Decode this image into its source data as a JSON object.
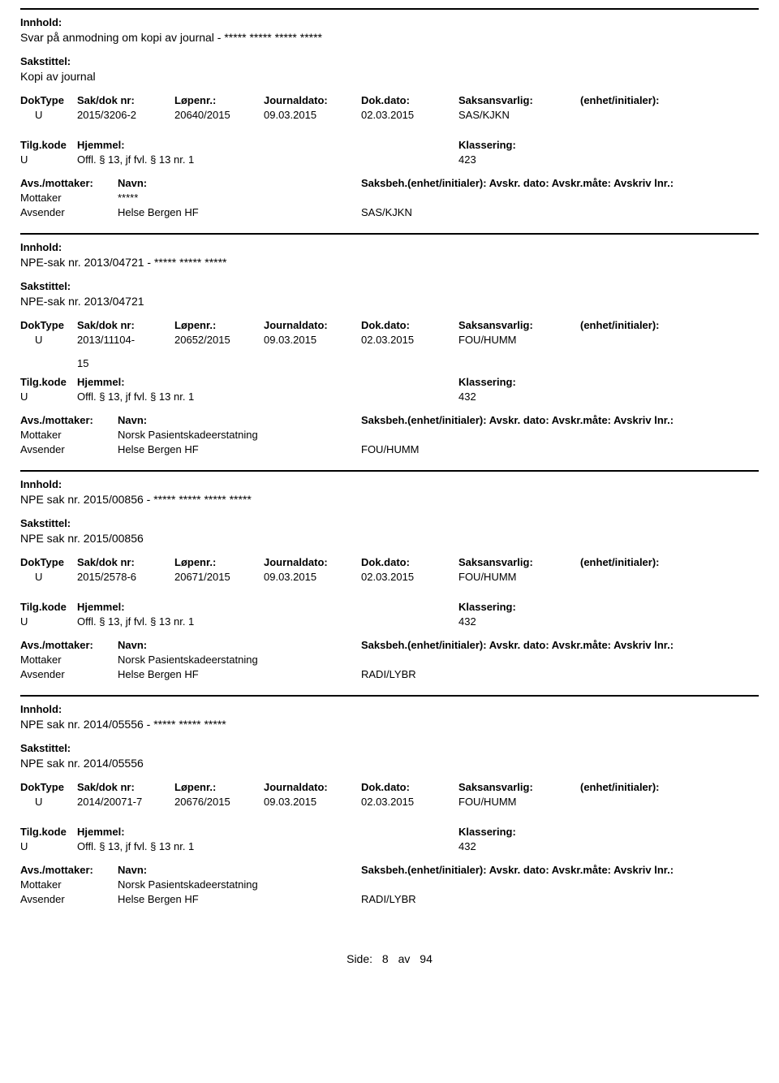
{
  "labels": {
    "innhold": "Innhold:",
    "sakstittel": "Sakstittel:",
    "doktype": "DokType",
    "sakdoknr": "Sak/dok nr:",
    "lopenr": "Løpenr.:",
    "journaldato": "Journaldato:",
    "dokdato": "Dok.dato:",
    "saksansvarlig": "Saksansvarlig:",
    "enhet": "(enhet/initialer):",
    "tilgkode": "Tilg.kode",
    "hjemmel": "Hjemmel:",
    "klassering": "Klassering:",
    "avsmottaker": "Avs./mottaker:",
    "navn": "Navn:",
    "saksbeh_line": "Saksbeh.(enhet/initialer): Avskr. dato:  Avskr.måte:  Avskriv lnr.:",
    "mottaker": "Mottaker",
    "avsender": "Avsender"
  },
  "entries": [
    {
      "innhold": "Svar på anmodning om kopi av journal - ***** ***** ***** *****",
      "sakstittel": "Kopi av journal",
      "doktype": "U",
      "sakdoknr": "2015/3206-2",
      "sakdoknr2": "",
      "lopenr": "20640/2015",
      "journaldato": "09.03.2015",
      "dokdato": "02.03.2015",
      "saksansvarlig": "SAS/KJKN",
      "tilgkode": "U",
      "hjemmel": "Offl. § 13, jf fvl. § 13 nr. 1",
      "klassering": "423",
      "mottaker_name": "*****",
      "avsender_name": "Helse Bergen HF",
      "saksbeh_unit": "SAS/KJKN"
    },
    {
      "innhold": "NPE-sak nr. 2013/04721 - ***** ***** *****",
      "sakstittel": "NPE-sak nr. 2013/04721",
      "doktype": "U",
      "sakdoknr": "2013/11104-",
      "sakdoknr2": "15",
      "lopenr": "20652/2015",
      "journaldato": "09.03.2015",
      "dokdato": "02.03.2015",
      "saksansvarlig": "FOU/HUMM",
      "tilgkode": "U",
      "hjemmel": "Offl. § 13, jf fvl. § 13 nr. 1",
      "klassering": "432",
      "mottaker_name": "Norsk Pasientskadeerstatning",
      "avsender_name": "Helse Bergen HF",
      "saksbeh_unit": "FOU/HUMM"
    },
    {
      "innhold": "NPE sak nr. 2015/00856 - ***** ***** ***** *****",
      "sakstittel": "NPE sak nr. 2015/00856",
      "doktype": "U",
      "sakdoknr": "2015/2578-6",
      "sakdoknr2": "",
      "lopenr": "20671/2015",
      "journaldato": "09.03.2015",
      "dokdato": "02.03.2015",
      "saksansvarlig": "FOU/HUMM",
      "tilgkode": "U",
      "hjemmel": "Offl. § 13, jf fvl. § 13 nr. 1",
      "klassering": "432",
      "mottaker_name": "Norsk Pasientskadeerstatning",
      "avsender_name": "Helse Bergen HF",
      "saksbeh_unit": "RADI/LYBR"
    },
    {
      "innhold": "NPE sak nr. 2014/05556 - ***** ***** *****",
      "sakstittel": "NPE sak nr. 2014/05556",
      "doktype": "U",
      "sakdoknr": "2014/20071-7",
      "sakdoknr2": "",
      "lopenr": "20676/2015",
      "journaldato": "09.03.2015",
      "dokdato": "02.03.2015",
      "saksansvarlig": "FOU/HUMM",
      "tilgkode": "U",
      "hjemmel": "Offl. § 13, jf fvl. § 13 nr. 1",
      "klassering": "432",
      "mottaker_name": "Norsk Pasientskadeerstatning",
      "avsender_name": "Helse Bergen HF",
      "saksbeh_unit": "RADI/LYBR"
    }
  ],
  "footer": {
    "side": "Side:",
    "page": "8",
    "av": "av",
    "total": "94"
  }
}
